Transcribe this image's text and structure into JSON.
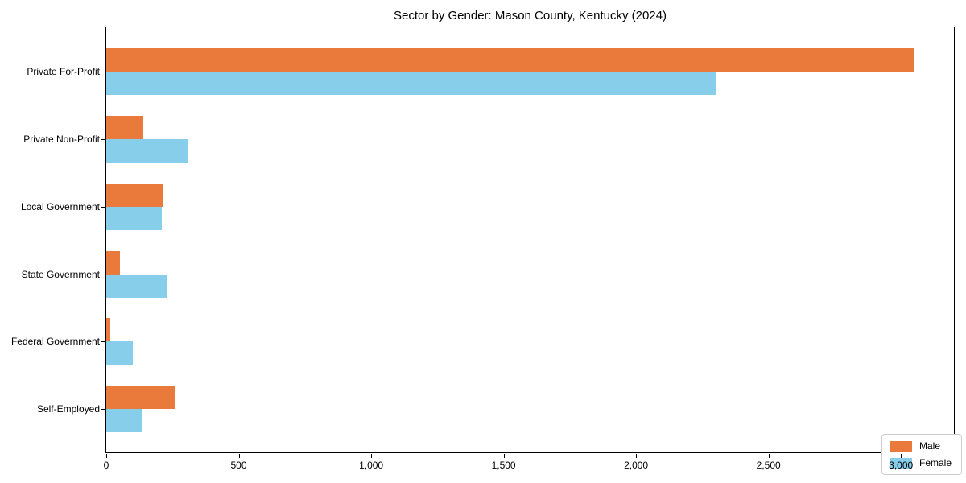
{
  "title": "Sector by Gender: Mason County, Kentucky (2024)",
  "colors": {
    "male": "#EA7A3C",
    "female": "#87CEEB",
    "frame": "#000000",
    "legend_border": "#cccccc",
    "background": "#ffffff"
  },
  "legend": {
    "position": "lower right",
    "items": [
      {
        "label": "Male",
        "color": "#EA7A3C"
      },
      {
        "label": "Female",
        "color": "#87CEEB"
      }
    ]
  },
  "chart_data": {
    "type": "bar",
    "orientation": "horizontal",
    "title": "Sector by Gender: Mason County, Kentucky (2024)",
    "categories": [
      "Private For-Profit",
      "Private Non-Profit",
      "Local Government",
      "State Government",
      "Federal Government",
      "Self-Employed"
    ],
    "series": [
      {
        "name": "Male",
        "color": "#EA7A3C",
        "values": [
          3050,
          140,
          215,
          50,
          15,
          260
        ]
      },
      {
        "name": "Female",
        "color": "#87CEEB",
        "values": [
          2300,
          310,
          210,
          230,
          100,
          135
        ]
      }
    ],
    "xlabel": "",
    "ylabel": "",
    "xlim": [
      0,
      3200
    ],
    "x_ticks": [
      0,
      500,
      1000,
      1500,
      2000,
      2500,
      3000
    ],
    "x_tick_labels": [
      "0",
      "500",
      "1,000",
      "1,500",
      "2,000",
      "2,500",
      "3,000"
    ],
    "grid": false,
    "legend_position": "lower right"
  }
}
